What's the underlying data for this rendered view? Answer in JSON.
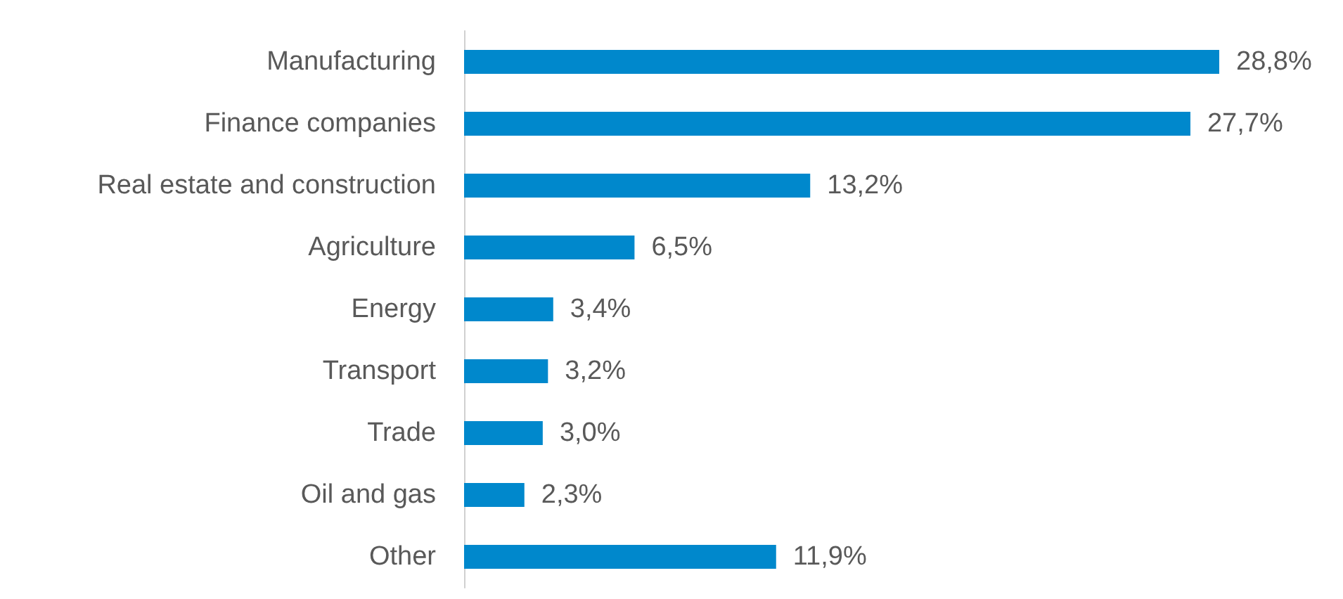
{
  "chart_data": {
    "type": "bar",
    "orientation": "horizontal",
    "tick_labels": "y",
    "categories": [
      "Manufacturing",
      "Finance companies",
      "Real estate and construction",
      "Agriculture",
      "Energy",
      "Transport",
      "Trade",
      "Oil and gas",
      "Other"
    ],
    "values": [
      28.8,
      27.7,
      13.2,
      6.5,
      3.4,
      3.2,
      3.0,
      2.3,
      11.9
    ],
    "value_labels": [
      "28,8%",
      "27,7%",
      "13,2%",
      "6,5%",
      "3,4%",
      "3,2%",
      "3,0%",
      "2,3%",
      "11,9%"
    ],
    "color": "#0088cc"
  }
}
